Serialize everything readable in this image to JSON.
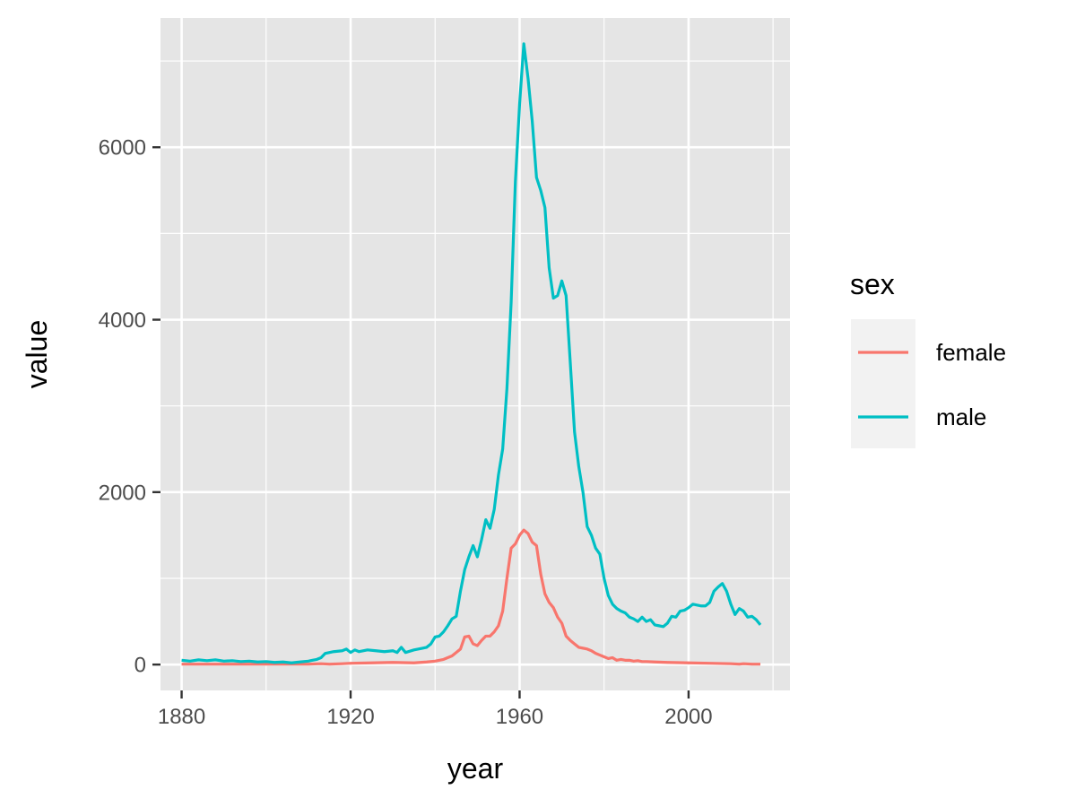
{
  "chart_data": {
    "type": "line",
    "xlabel": "year",
    "ylabel": "value",
    "xlim": [
      1875,
      2024
    ],
    "ylim": [
      -300,
      7500
    ],
    "x_ticks": [
      1880,
      1920,
      1960,
      2000
    ],
    "x_tick_labels": [
      "1880",
      "1920",
      "1960",
      "2000"
    ],
    "y_ticks": [
      0,
      2000,
      4000,
      6000
    ],
    "y_tick_labels": [
      "0",
      "2000",
      "4000",
      "6000"
    ],
    "grid": true,
    "legend": {
      "title": "sex",
      "placement": "right"
    },
    "series": [
      {
        "name": "female",
        "color": "#F8766D",
        "points": [
          [
            1880,
            5
          ],
          [
            1885,
            5
          ],
          [
            1890,
            5
          ],
          [
            1895,
            5
          ],
          [
            1900,
            5
          ],
          [
            1905,
            5
          ],
          [
            1910,
            5
          ],
          [
            1913,
            10
          ],
          [
            1915,
            5
          ],
          [
            1918,
            10
          ],
          [
            1920,
            15
          ],
          [
            1925,
            20
          ],
          [
            1930,
            25
          ],
          [
            1935,
            20
          ],
          [
            1938,
            30
          ],
          [
            1940,
            40
          ],
          [
            1942,
            60
          ],
          [
            1944,
            100
          ],
          [
            1946,
            180
          ],
          [
            1947,
            320
          ],
          [
            1948,
            330
          ],
          [
            1949,
            240
          ],
          [
            1950,
            220
          ],
          [
            1951,
            280
          ],
          [
            1952,
            330
          ],
          [
            1953,
            330
          ],
          [
            1954,
            380
          ],
          [
            1955,
            450
          ],
          [
            1956,
            620
          ],
          [
            1957,
            1000
          ],
          [
            1958,
            1350
          ],
          [
            1959,
            1400
          ],
          [
            1960,
            1500
          ],
          [
            1961,
            1560
          ],
          [
            1962,
            1520
          ],
          [
            1963,
            1420
          ],
          [
            1964,
            1380
          ],
          [
            1965,
            1050
          ],
          [
            1966,
            820
          ],
          [
            1967,
            720
          ],
          [
            1968,
            660
          ],
          [
            1969,
            550
          ],
          [
            1970,
            480
          ],
          [
            1971,
            330
          ],
          [
            1972,
            280
          ],
          [
            1973,
            240
          ],
          [
            1974,
            200
          ],
          [
            1975,
            190
          ],
          [
            1976,
            180
          ],
          [
            1977,
            160
          ],
          [
            1978,
            130
          ],
          [
            1979,
            110
          ],
          [
            1980,
            90
          ],
          [
            1981,
            70
          ],
          [
            1982,
            80
          ],
          [
            1983,
            50
          ],
          [
            1984,
            60
          ],
          [
            1985,
            50
          ],
          [
            1986,
            50
          ],
          [
            1987,
            40
          ],
          [
            1988,
            45
          ],
          [
            1989,
            35
          ],
          [
            1990,
            35
          ],
          [
            1992,
            30
          ],
          [
            1995,
            25
          ],
          [
            2000,
            20
          ],
          [
            2005,
            15
          ],
          [
            2010,
            10
          ],
          [
            2012,
            5
          ],
          [
            2013,
            10
          ],
          [
            2015,
            5
          ],
          [
            2017,
            5
          ]
        ]
      },
      {
        "name": "male",
        "color": "#00BFC4",
        "points": [
          [
            1880,
            50
          ],
          [
            1882,
            40
          ],
          [
            1884,
            55
          ],
          [
            1886,
            45
          ],
          [
            1888,
            55
          ],
          [
            1890,
            40
          ],
          [
            1892,
            45
          ],
          [
            1894,
            35
          ],
          [
            1896,
            40
          ],
          [
            1898,
            30
          ],
          [
            1900,
            35
          ],
          [
            1902,
            25
          ],
          [
            1904,
            30
          ],
          [
            1906,
            20
          ],
          [
            1908,
            30
          ],
          [
            1910,
            40
          ],
          [
            1911,
            50
          ],
          [
            1912,
            60
          ],
          [
            1913,
            80
          ],
          [
            1914,
            130
          ],
          [
            1915,
            140
          ],
          [
            1916,
            150
          ],
          [
            1918,
            160
          ],
          [
            1919,
            180
          ],
          [
            1920,
            140
          ],
          [
            1921,
            170
          ],
          [
            1922,
            150
          ],
          [
            1924,
            170
          ],
          [
            1926,
            160
          ],
          [
            1928,
            150
          ],
          [
            1930,
            160
          ],
          [
            1931,
            140
          ],
          [
            1932,
            200
          ],
          [
            1933,
            140
          ],
          [
            1935,
            170
          ],
          [
            1937,
            190
          ],
          [
            1938,
            200
          ],
          [
            1939,
            240
          ],
          [
            1940,
            320
          ],
          [
            1941,
            330
          ],
          [
            1942,
            380
          ],
          [
            1943,
            450
          ],
          [
            1944,
            530
          ],
          [
            1945,
            560
          ],
          [
            1946,
            850
          ],
          [
            1947,
            1100
          ],
          [
            1948,
            1250
          ],
          [
            1949,
            1380
          ],
          [
            1950,
            1250
          ],
          [
            1951,
            1450
          ],
          [
            1952,
            1680
          ],
          [
            1953,
            1580
          ],
          [
            1954,
            1800
          ],
          [
            1955,
            2200
          ],
          [
            1956,
            2500
          ],
          [
            1957,
            3200
          ],
          [
            1958,
            4200
          ],
          [
            1959,
            5600
          ],
          [
            1960,
            6500
          ],
          [
            1961,
            7200
          ],
          [
            1962,
            6800
          ],
          [
            1963,
            6300
          ],
          [
            1964,
            5650
          ],
          [
            1965,
            5500
          ],
          [
            1966,
            5300
          ],
          [
            1967,
            4600
          ],
          [
            1968,
            4250
          ],
          [
            1969,
            4280
          ],
          [
            1970,
            4450
          ],
          [
            1971,
            4280
          ],
          [
            1972,
            3500
          ],
          [
            1973,
            2700
          ],
          [
            1974,
            2300
          ],
          [
            1975,
            2000
          ],
          [
            1976,
            1600
          ],
          [
            1977,
            1500
          ],
          [
            1978,
            1350
          ],
          [
            1979,
            1280
          ],
          [
            1980,
            1000
          ],
          [
            1981,
            800
          ],
          [
            1982,
            700
          ],
          [
            1983,
            650
          ],
          [
            1984,
            620
          ],
          [
            1985,
            600
          ],
          [
            1986,
            550
          ],
          [
            1987,
            530
          ],
          [
            1988,
            500
          ],
          [
            1989,
            550
          ],
          [
            1990,
            500
          ],
          [
            1991,
            520
          ],
          [
            1992,
            460
          ],
          [
            1993,
            450
          ],
          [
            1994,
            440
          ],
          [
            1995,
            480
          ],
          [
            1996,
            560
          ],
          [
            1997,
            550
          ],
          [
            1998,
            620
          ],
          [
            1999,
            630
          ],
          [
            2000,
            660
          ],
          [
            2001,
            700
          ],
          [
            2002,
            690
          ],
          [
            2003,
            680
          ],
          [
            2004,
            680
          ],
          [
            2005,
            720
          ],
          [
            2006,
            850
          ],
          [
            2007,
            900
          ],
          [
            2008,
            940
          ],
          [
            2009,
            850
          ],
          [
            2010,
            700
          ],
          [
            2011,
            580
          ],
          [
            2012,
            650
          ],
          [
            2013,
            620
          ],
          [
            2014,
            550
          ],
          [
            2015,
            560
          ],
          [
            2016,
            520
          ],
          [
            2017,
            460
          ]
        ]
      }
    ]
  },
  "colors": {
    "panel_background": "#E5E5E5",
    "grid": "#FFFFFF",
    "legend_key_background": "#F2F2F2",
    "tick_text": "#4D4D4D"
  }
}
